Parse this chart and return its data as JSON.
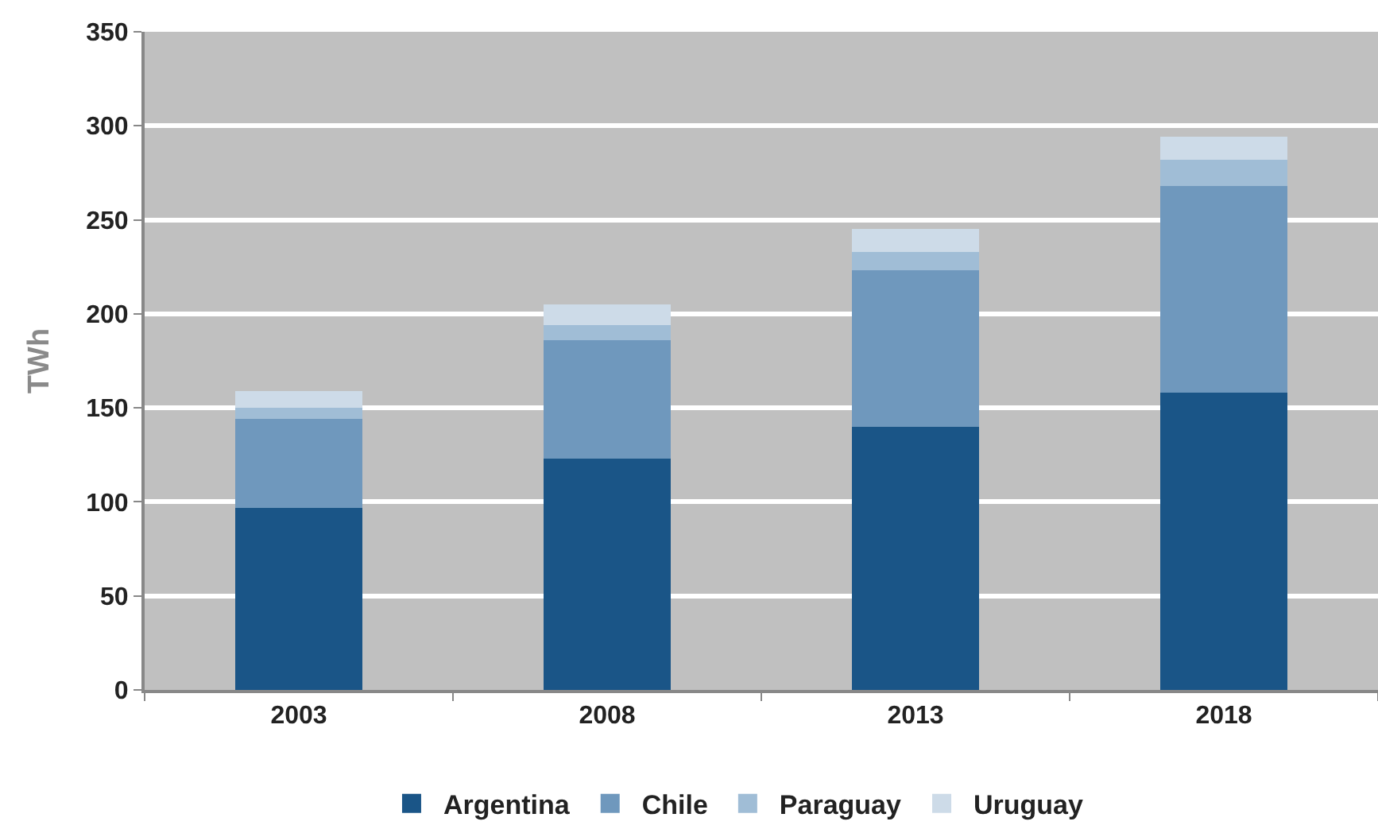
{
  "chart_data": {
    "type": "bar",
    "stacked": true,
    "ylabel": "TWh",
    "categories": [
      "2003",
      "2008",
      "2013",
      "2018"
    ],
    "series": [
      {
        "name": "Argentina",
        "color": "#1a5587",
        "values": [
          97,
          123,
          140,
          158
        ]
      },
      {
        "name": "Chile",
        "color": "#6f98bd",
        "values": [
          47,
          63,
          83,
          110
        ]
      },
      {
        "name": "Paraguay",
        "color": "#a0bdd6",
        "values": [
          6,
          8,
          10,
          14
        ]
      },
      {
        "name": "Uruguay",
        "color": "#cddbe8",
        "values": [
          9,
          11,
          12,
          12
        ]
      }
    ],
    "ylim": [
      0,
      350
    ],
    "yticks": [
      0,
      50,
      100,
      150,
      200,
      250,
      300,
      350
    ],
    "grid": "y",
    "legend": "bottom"
  }
}
